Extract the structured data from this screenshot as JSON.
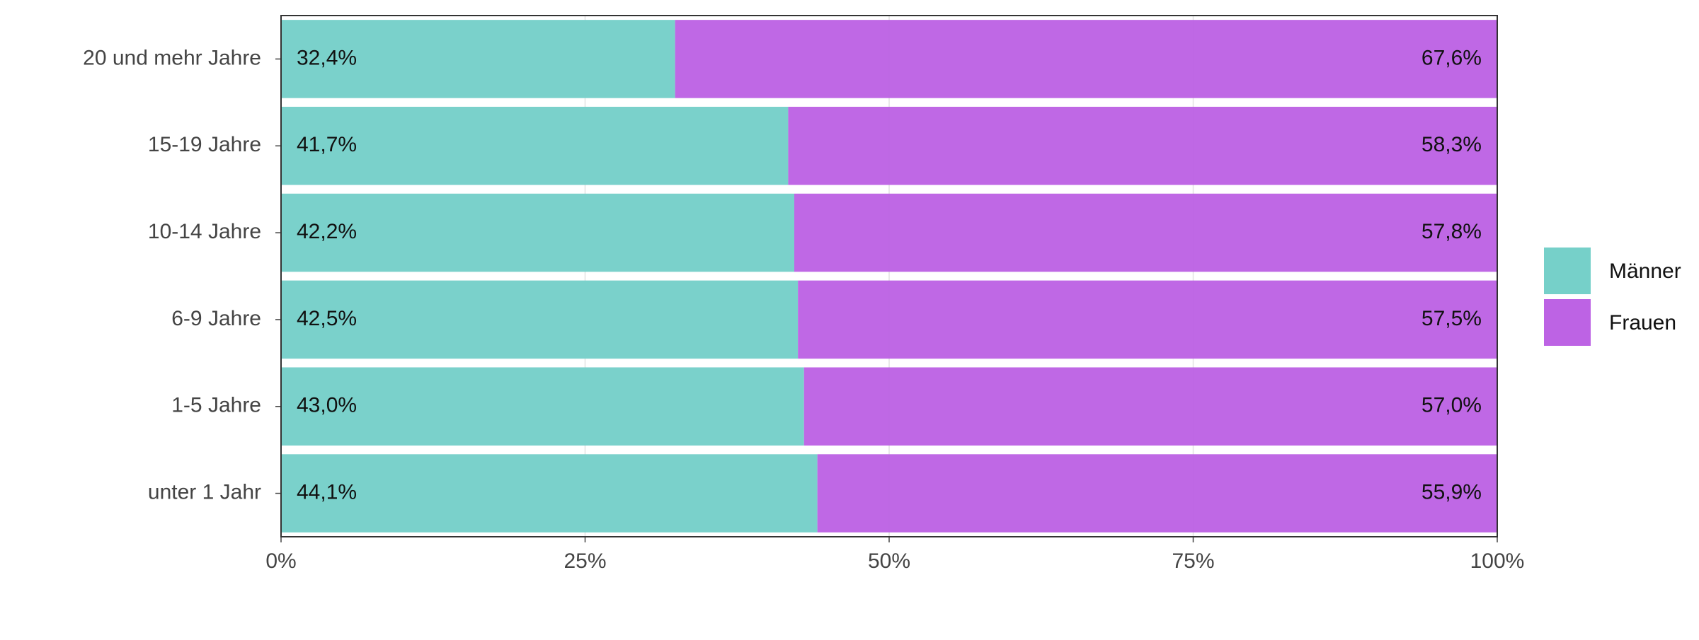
{
  "chart_data": {
    "type": "stacked-barh",
    "categories": [
      "20 und mehr Jahre",
      "15-19 Jahre",
      "10-14 Jahre",
      "6-9 Jahre",
      "1-5 Jahre",
      "unter 1 Jahr"
    ],
    "series": [
      {
        "name": "Männer",
        "color": "#76d0c9",
        "values": [
          32.4,
          41.7,
          42.2,
          42.5,
          43.0,
          44.1
        ],
        "value_labels": [
          "32,4%",
          "41,7%",
          "42,2%",
          "42,5%",
          "43,0%",
          "44,1%"
        ]
      },
      {
        "name": "Frauen",
        "color": "#bd63e4",
        "values": [
          67.6,
          58.3,
          57.8,
          57.5,
          57.0,
          55.9
        ],
        "value_labels": [
          "67,6%",
          "58,3%",
          "57,8%",
          "57,5%",
          "57,0%",
          "55,9%"
        ]
      }
    ],
    "xlim": [
      0,
      100
    ],
    "xticks": [
      {
        "value": 0,
        "label": "0%"
      },
      {
        "value": 25,
        "label": "25%"
      },
      {
        "value": 50,
        "label": "50%"
      },
      {
        "value": 75,
        "label": "75%"
      },
      {
        "value": 100,
        "label": "100%"
      }
    ],
    "grid": true,
    "legend": "right"
  }
}
